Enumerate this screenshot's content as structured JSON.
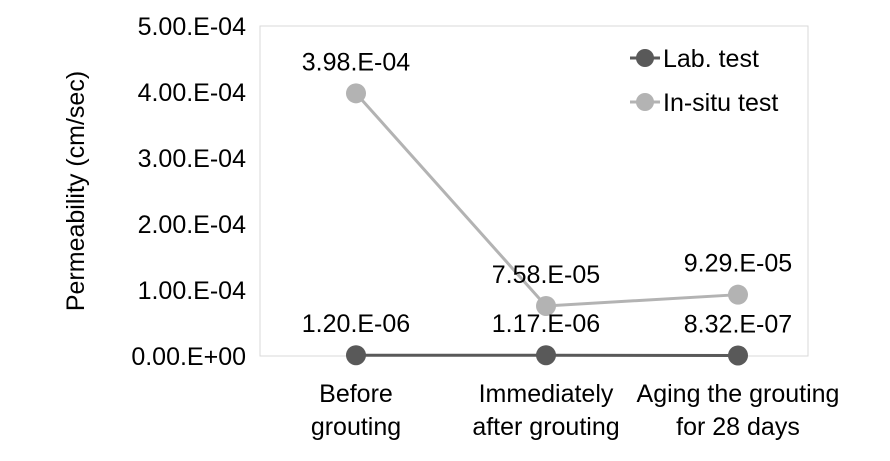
{
  "chart_data": {
    "type": "line",
    "title": "",
    "xlabel": "",
    "ylabel": "Permeability (cm/sec)",
    "ylim": [
      0,
      0.0005
    ],
    "y_ticks": [
      0,
      0.0001,
      0.0002,
      0.0003,
      0.0004,
      0.0005
    ],
    "y_tick_labels": [
      "0.00.E+00",
      "1.00.E-04",
      "2.00.E-04",
      "3.00.E-04",
      "4.00.E-04",
      "5.00.E-04"
    ],
    "categories": [
      [
        "Before",
        "grouting"
      ],
      [
        "Immediately",
        "after grouting"
      ],
      [
        "Aging the grouting",
        "for 28 days"
      ]
    ],
    "grid": false,
    "legend_position": "top-right",
    "series": [
      {
        "name": "Lab. test",
        "color": "#595959",
        "values": [
          1.2e-06,
          1.17e-06,
          8.32e-07
        ],
        "labels": [
          "1.20.E-06",
          "1.17.E-06",
          "8.32.E-07"
        ]
      },
      {
        "name": "In-situ test",
        "color": "#b3b3b3",
        "values": [
          0.000398,
          7.58e-05,
          9.29e-05
        ],
        "labels": [
          "3.98.E-04",
          "7.58.E-05",
          "9.29.E-05"
        ]
      }
    ]
  }
}
